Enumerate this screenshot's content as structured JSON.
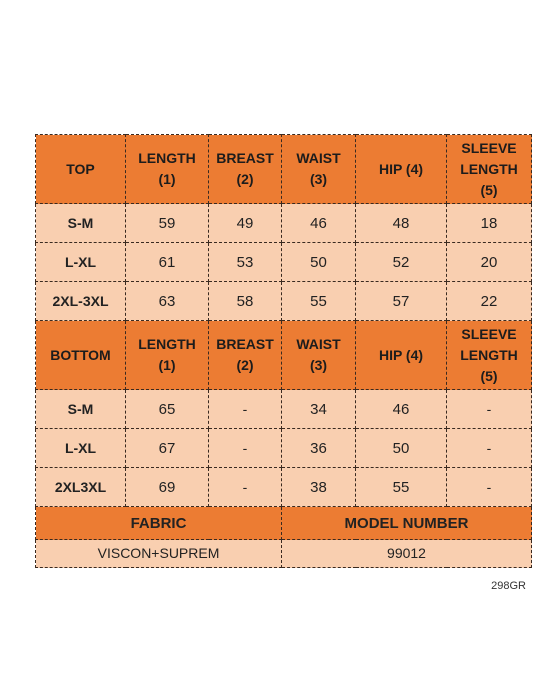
{
  "top": {
    "title": "TOP",
    "headers": [
      "LENGTH\n(1)",
      "BREAST\n(2)",
      "WAIST\n(3)",
      "HIP (4)",
      "SLEEVE\nLENGTH\n(5)"
    ],
    "rows": [
      {
        "size": "S-M",
        "length": "59",
        "breast": "49",
        "waist": "46",
        "hip": "48",
        "sleeve": "18"
      },
      {
        "size": "L-XL",
        "length": "61",
        "breast": "53",
        "waist": "50",
        "hip": "52",
        "sleeve": "20"
      },
      {
        "size": "2XL-3XL",
        "length": "63",
        "breast": "58",
        "waist": "55",
        "hip": "57",
        "sleeve": "22"
      }
    ]
  },
  "bottom": {
    "title": "BOTTOM",
    "headers": [
      "LENGTH\n(1)",
      "BREAST\n(2)",
      "WAIST\n(3)",
      "HIP (4)",
      "SLEEVE\nLENGTH\n(5)"
    ],
    "rows": [
      {
        "size": "S-M",
        "length": "65",
        "breast": "-",
        "waist": "34",
        "hip": "46",
        "sleeve": "-"
      },
      {
        "size": "L-XL",
        "length": "67",
        "breast": "-",
        "waist": "36",
        "hip": "50",
        "sleeve": "-"
      },
      {
        "size": "2XL3XL",
        "length": "69",
        "breast": "-",
        "waist": "38",
        "hip": "55",
        "sleeve": "-"
      }
    ]
  },
  "footer": {
    "fabric_label": "FABRIC",
    "fabric_value": "VISCON+SUPREM",
    "model_label": "MODEL NUMBER",
    "model_value": "99012"
  },
  "product_code": "298GR",
  "colors": {
    "header_orange": "#ec7c33",
    "cell_peach": "#f9cfb0"
  }
}
